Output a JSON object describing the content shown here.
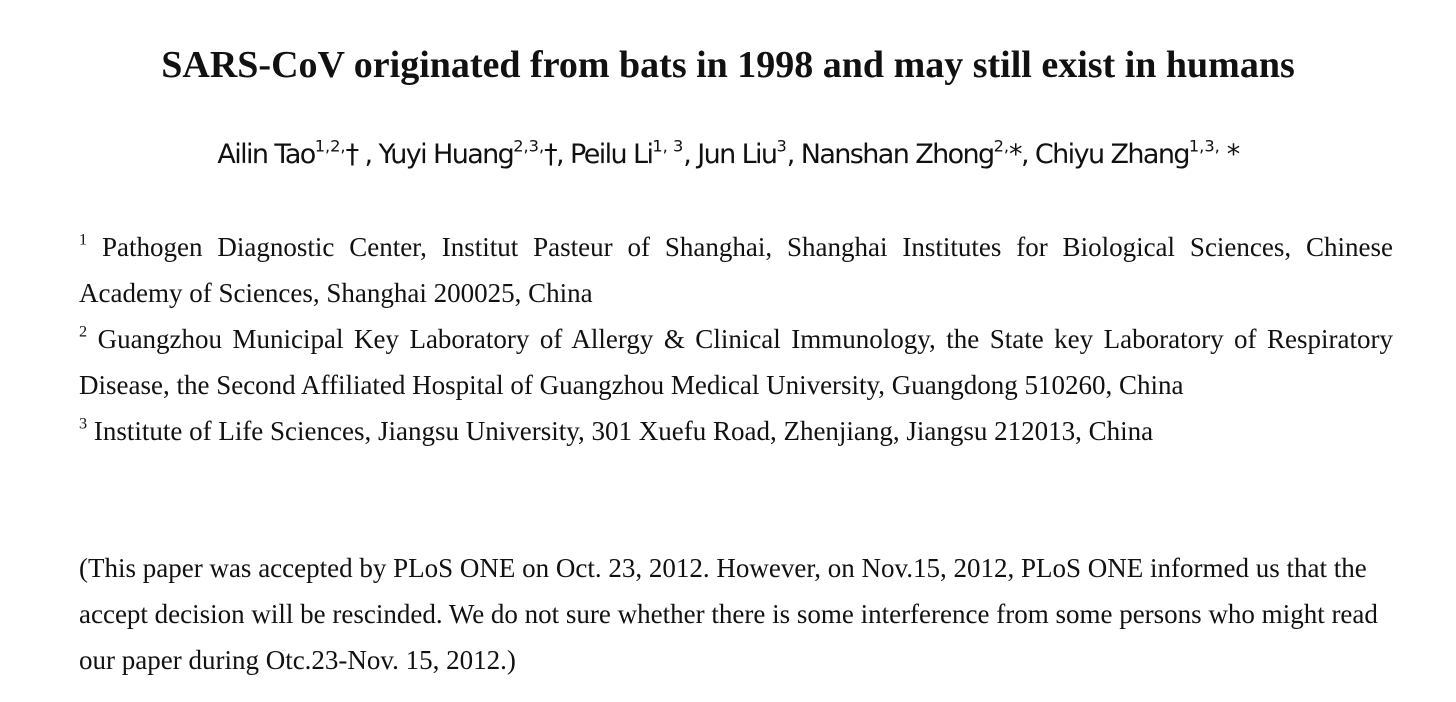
{
  "header": {
    "title": "SARS-CoV originated from bats in 1998 and may still exist in humans",
    "authors": [
      {
        "name": "Ailin Tao",
        "sup": "1,2,",
        "tail": "† , "
      },
      {
        "name": "Yuyi Huang",
        "sup": "2,3,",
        "tail": "†, "
      },
      {
        "name": "Peilu Li",
        "sup": "1, 3",
        "tail": ", "
      },
      {
        "name": "Jun Liu",
        "sup": "3",
        "tail": ", "
      },
      {
        "name": "Nanshan Zhong",
        "sup": "2,",
        "tail": "*, "
      },
      {
        "name": "Chiyu Zhang",
        "sup": "1,3,",
        "tail": " *"
      }
    ]
  },
  "affiliations": [
    {
      "number": "1",
      "text": "Pathogen Diagnostic Center, Institut Pasteur of Shanghai, Shanghai Institutes for Biological Sciences, Chinese Academy of Sciences, Shanghai 200025, China"
    },
    {
      "number": "2",
      "text": "Guangzhou Municipal Key Laboratory of Allergy & Clinical Immunology, the State key Laboratory of Respiratory Disease, the Second Affiliated Hospital of Guangzhou Medical University, Guangdong 510260, China"
    },
    {
      "number": "3",
      "text": "Institute of Life Sciences, Jiangsu University, 301 Xuefu Road, Zhenjiang, Jiangsu 212013, China"
    }
  ],
  "note": "(This paper was accepted by PLoS ONE on Oct. 23, 2012. However, on Nov.15, 2012, PLoS ONE informed us that the accept decision will be rescinded. We do not sure whether there is some interference from some persons who might read our paper during Otc.23-Nov. 15, 2012.)"
}
